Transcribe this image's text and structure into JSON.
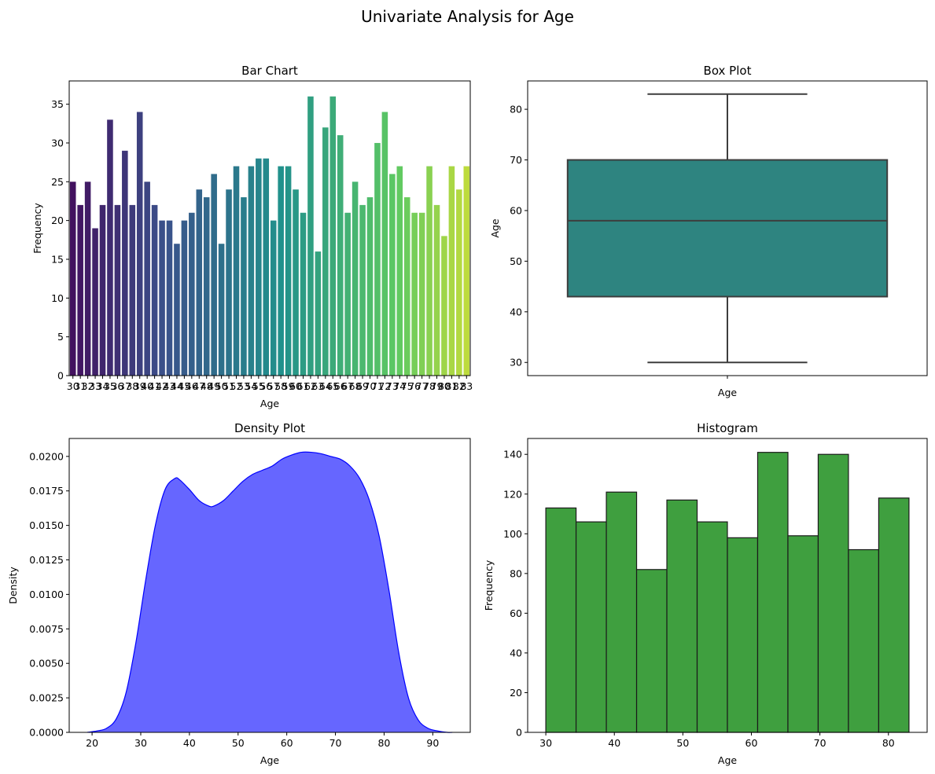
{
  "figure": {
    "title": "Univariate Analysis for Age"
  },
  "chart_data": [
    {
      "type": "bar",
      "title": "Bar Chart",
      "xlabel": "Age",
      "ylabel": "Frequency",
      "ylim": [
        0,
        38
      ],
      "yticks": [
        0,
        5,
        10,
        15,
        20,
        25,
        30,
        35
      ],
      "categories": [
        30,
        31,
        32,
        33,
        34,
        35,
        36,
        37,
        38,
        39,
        40,
        41,
        42,
        43,
        44,
        45,
        46,
        47,
        48,
        49,
        50,
        51,
        52,
        53,
        54,
        55,
        56,
        57,
        58,
        59,
        60,
        61,
        62,
        63,
        64,
        65,
        66,
        67,
        68,
        69,
        70,
        71,
        72,
        73,
        74,
        75,
        76,
        77,
        78,
        79,
        80,
        81,
        82,
        83
      ],
      "values": [
        25,
        22,
        25,
        19,
        22,
        33,
        22,
        29,
        22,
        34,
        25,
        22,
        20,
        20,
        17,
        20,
        21,
        24,
        23,
        26,
        17,
        24,
        27,
        23,
        27,
        28,
        28,
        20,
        27,
        27,
        24,
        21,
        36,
        16,
        32,
        36,
        31,
        21,
        25,
        22,
        23,
        30,
        34,
        26,
        27,
        23,
        21,
        21,
        27,
        22,
        18,
        27,
        24,
        27
      ],
      "palette": "viridis",
      "grid": false
    },
    {
      "type": "box",
      "title": "Box Plot",
      "xlabel": "Age",
      "ylabel": "Age",
      "ylim": [
        27.4,
        85.6
      ],
      "yticks": [
        30,
        40,
        50,
        60,
        70,
        80
      ],
      "stats": {
        "min": 30,
        "q1": 43,
        "median": 58,
        "q3": 70,
        "max": 83
      },
      "color": "#2e8480",
      "grid": false
    },
    {
      "type": "area",
      "title": "Density Plot",
      "xlabel": "Age",
      "ylabel": "Density",
      "xlim": [
        15.3,
        97.7
      ],
      "ylim": [
        0,
        0.0213
      ],
      "xticks": [
        20,
        30,
        40,
        50,
        60,
        70,
        80,
        90
      ],
      "yticks": [
        "0.0000",
        "0.0025",
        "0.0050",
        "0.0075",
        "0.0100",
        "0.0125",
        "0.0150",
        "0.0175",
        "0.0200"
      ],
      "x": [
        19,
        21,
        23,
        25,
        27,
        29,
        31,
        33,
        35,
        37,
        38,
        40,
        42,
        44,
        45,
        47,
        49,
        51,
        53,
        55,
        57,
        59,
        61,
        63,
        65,
        67,
        69,
        71,
        73,
        75,
        77,
        79,
        81,
        83,
        85,
        87,
        89,
        91,
        93,
        94
      ],
      "y": [
        0.0,
        0.0001,
        0.0003,
        0.001,
        0.0029,
        0.0065,
        0.011,
        0.015,
        0.0176,
        0.0184,
        0.0183,
        0.0176,
        0.0168,
        0.0164,
        0.0164,
        0.0168,
        0.0175,
        0.0182,
        0.0187,
        0.019,
        0.0193,
        0.0198,
        0.0201,
        0.0203,
        0.0203,
        0.0202,
        0.02,
        0.0198,
        0.0193,
        0.0184,
        0.0168,
        0.0142,
        0.0103,
        0.0058,
        0.0025,
        0.0009,
        0.0003,
        0.0001,
        0.0,
        0.0
      ],
      "fill": "#6666ff",
      "stroke": "#0000ff",
      "grid": false
    },
    {
      "type": "bar",
      "title": "Histogram",
      "xlabel": "Age",
      "ylabel": "Frequency",
      "xlim": [
        27.35,
        85.65
      ],
      "ylim": [
        0,
        148
      ],
      "xticks": [
        30,
        40,
        50,
        60,
        70,
        80
      ],
      "yticks": [
        0,
        20,
        40,
        60,
        80,
        100,
        120,
        140
      ],
      "bin_edges": [
        30,
        34.4167,
        38.8333,
        43.25,
        47.6667,
        52.0833,
        56.5,
        60.9167,
        65.3333,
        69.75,
        74.1667,
        78.5833,
        83
      ],
      "values": [
        113,
        106,
        121,
        82,
        117,
        106,
        98,
        141,
        99,
        140,
        92,
        118
      ],
      "color": "#3f9f3f",
      "grid": false
    }
  ]
}
